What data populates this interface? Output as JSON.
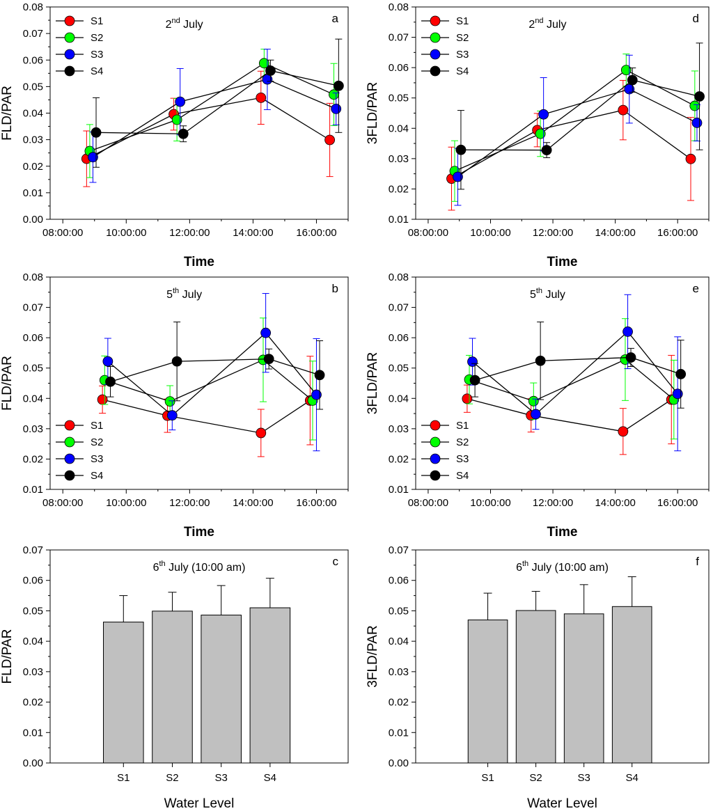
{
  "chart_data": [
    {
      "id": "a",
      "type": "line",
      "title": "2nd July",
      "title_base": "2",
      "title_sup": "nd",
      "title_rest": " July",
      "letter": "a",
      "xlabel": "Time",
      "ylabel": "FLD/PAR",
      "ylim": [
        0,
        0.08
      ],
      "yticks": [
        "0.00",
        "0.01",
        "0.02",
        "0.03",
        "0.04",
        "0.05",
        "0.06",
        "0.07",
        "0.08"
      ],
      "xlim": [
        7.6,
        17.0
      ],
      "xtick_values": [
        8,
        10,
        12,
        14,
        16
      ],
      "xticks": [
        "08:00:00",
        "10:00:00",
        "12:00:00",
        "14:00:00",
        "16:00:00"
      ],
      "legend_position": "top-left",
      "series": [
        {
          "name": "S1",
          "color": "#ff0000",
          "x": [
            8.75,
            11.5,
            14.25,
            16.42
          ],
          "y": [
            0.0228,
            0.0396,
            0.0458,
            0.0299
          ],
          "err": [
            0.0105,
            0.006,
            0.01,
            0.0138
          ]
        },
        {
          "name": "S2",
          "color": "#00ff00",
          "x": [
            8.85,
            11.6,
            14.35,
            16.55
          ],
          "y": [
            0.0257,
            0.0375,
            0.0588,
            0.047
          ],
          "err": [
            0.01,
            0.008,
            0.0053,
            0.0117
          ]
        },
        {
          "name": "S3",
          "color": "#0000ff",
          "x": [
            8.95,
            11.7,
            14.45,
            16.62
          ],
          "y": [
            0.0234,
            0.0443,
            0.0527,
            0.0416
          ],
          "err": [
            0.0095,
            0.0125,
            0.0114,
            0.006
          ]
        },
        {
          "name": "S4",
          "color": "#000000",
          "x": [
            9.05,
            11.8,
            14.55,
            16.7
          ],
          "y": [
            0.0327,
            0.0322,
            0.056,
            0.0503
          ],
          "err": [
            0.0131,
            0.003,
            0.004,
            0.0176
          ]
        }
      ]
    },
    {
      "id": "d",
      "type": "line",
      "title": "2nd July",
      "title_base": "2",
      "title_sup": "nd",
      "title_rest": " July",
      "letter": "d",
      "xlabel": "Time",
      "ylabel": "3FLD/PAR",
      "ylim": [
        0.01,
        0.08
      ],
      "yticks": [
        "0.01",
        "0.02",
        "0.03",
        "0.04",
        "0.05",
        "0.06",
        "0.07",
        "0.08"
      ],
      "xlim": [
        7.6,
        17.0
      ],
      "xtick_values": [
        8,
        10,
        12,
        14,
        16
      ],
      "xticks": [
        "08:00:00",
        "10:00:00",
        "12:00:00",
        "14:00:00",
        "16:00:00"
      ],
      "legend_position": "top-left",
      "series": [
        {
          "name": "S1",
          "color": "#ff0000",
          "x": [
            8.75,
            11.5,
            14.25,
            16.42
          ],
          "y": [
            0.0234,
            0.0394,
            0.046,
            0.0299
          ],
          "err": [
            0.0104,
            0.0055,
            0.0098,
            0.0137
          ]
        },
        {
          "name": "S2",
          "color": "#00ff00",
          "x": [
            8.85,
            11.6,
            14.35,
            16.55
          ],
          "y": [
            0.0259,
            0.0382,
            0.0592,
            0.0474
          ],
          "err": [
            0.01,
            0.0075,
            0.0053,
            0.0115
          ]
        },
        {
          "name": "S3",
          "color": "#0000ff",
          "x": [
            8.95,
            11.7,
            14.45,
            16.62
          ],
          "y": [
            0.024,
            0.0446,
            0.0529,
            0.0418
          ],
          "err": [
            0.0094,
            0.0121,
            0.0112,
            0.006
          ]
        },
        {
          "name": "S4",
          "color": "#000000",
          "x": [
            9.05,
            11.8,
            14.55,
            16.7
          ],
          "y": [
            0.0329,
            0.0328,
            0.0559,
            0.0505
          ],
          "err": [
            0.013,
            0.0025,
            0.004,
            0.0176
          ]
        }
      ]
    },
    {
      "id": "b",
      "type": "line",
      "title": "5th July",
      "title_base": "5",
      "title_sup": "th",
      "title_rest": " July",
      "letter": "b",
      "xlabel": "Time",
      "ylabel": "FLD/PAR",
      "ylim": [
        0.01,
        0.08
      ],
      "yticks": [
        "0.01",
        "0.02",
        "0.03",
        "0.04",
        "0.05",
        "0.06",
        "0.07",
        "0.08"
      ],
      "xlim": [
        7.6,
        17.0
      ],
      "xtick_values": [
        8,
        10,
        12,
        14,
        16
      ],
      "xticks": [
        "08:00:00",
        "10:00:00",
        "12:00:00",
        "14:00:00",
        "16:00:00"
      ],
      "legend_position": "bottom-left",
      "series": [
        {
          "name": "S1",
          "color": "#ff0000",
          "x": [
            9.25,
            11.3,
            14.25,
            15.8
          ],
          "y": [
            0.0396,
            0.0343,
            0.0286,
            0.0393
          ],
          "err": [
            0.0045,
            0.0055,
            0.0078,
            0.0146
          ]
        },
        {
          "name": "S2",
          "color": "#00ff00",
          "x": [
            9.32,
            11.38,
            14.32,
            15.88
          ],
          "y": [
            0.046,
            0.039,
            0.0527,
            0.0393
          ],
          "err": [
            0.008,
            0.0052,
            0.0138,
            0.013
          ]
        },
        {
          "name": "S3",
          "color": "#0000ff",
          "x": [
            9.42,
            11.45,
            14.4,
            16.0
          ],
          "y": [
            0.0522,
            0.0344,
            0.0616,
            0.0412
          ],
          "err": [
            0.0076,
            0.0048,
            0.013,
            0.0185
          ]
        },
        {
          "name": "S4",
          "color": "#000000",
          "x": [
            9.5,
            11.6,
            14.5,
            16.1
          ],
          "y": [
            0.0455,
            0.0522,
            0.053,
            0.0477
          ],
          "err": [
            0.005,
            0.013,
            0.0033,
            0.0113
          ]
        }
      ]
    },
    {
      "id": "e",
      "type": "line",
      "title": "5th July",
      "title_base": "5",
      "title_sup": "th",
      "title_rest": " July",
      "letter": "e",
      "xlabel": "Time",
      "ylabel": "3FLD/PAR",
      "ylim": [
        0.01,
        0.08
      ],
      "yticks": [
        "0.01",
        "0.02",
        "0.03",
        "0.04",
        "0.05",
        "0.06",
        "0.07",
        "0.08"
      ],
      "xlim": [
        7.6,
        17.0
      ],
      "xtick_values": [
        8,
        10,
        12,
        14,
        16
      ],
      "xticks": [
        "08:00:00",
        "10:00:00",
        "12:00:00",
        "14:00:00",
        "16:00:00"
      ],
      "legend_position": "bottom-left",
      "series": [
        {
          "name": "S1",
          "color": "#ff0000",
          "x": [
            9.25,
            11.3,
            14.25,
            15.8
          ],
          "y": [
            0.0399,
            0.0344,
            0.0291,
            0.0396
          ],
          "err": [
            0.0045,
            0.0055,
            0.0076,
            0.0146
          ]
        },
        {
          "name": "S2",
          "color": "#00ff00",
          "x": [
            9.32,
            11.38,
            14.32,
            15.88
          ],
          "y": [
            0.0462,
            0.0391,
            0.0528,
            0.0396
          ],
          "err": [
            0.008,
            0.006,
            0.0135,
            0.013
          ]
        },
        {
          "name": "S3",
          "color": "#0000ff",
          "x": [
            9.42,
            11.45,
            14.4,
            16.0
          ],
          "y": [
            0.0521,
            0.0348,
            0.062,
            0.0415
          ],
          "err": [
            0.0077,
            0.005,
            0.0122,
            0.0188
          ]
        },
        {
          "name": "S4",
          "color": "#000000",
          "x": [
            9.5,
            11.6,
            14.5,
            16.1
          ],
          "y": [
            0.046,
            0.0524,
            0.0535,
            0.048
          ],
          "err": [
            0.0055,
            0.0128,
            0.003,
            0.0112
          ]
        }
      ]
    },
    {
      "id": "c",
      "type": "bar",
      "title": "6th July (10:00 am)",
      "title_base": "6",
      "title_sup": "th",
      "title_rest": " July (10:00 am)",
      "letter": "c",
      "xlabel": "Water Level",
      "ylabel": "FLD/PAR",
      "ylim": [
        0,
        0.07
      ],
      "yticks": [
        "0.00",
        "0.01",
        "0.02",
        "0.03",
        "0.04",
        "0.05",
        "0.06",
        "0.07"
      ],
      "categories": [
        "S1",
        "S2",
        "S3",
        "S4"
      ],
      "values": [
        0.0463,
        0.0499,
        0.0486,
        0.051
      ],
      "err": [
        0.0087,
        0.0062,
        0.0097,
        0.0097
      ],
      "bar_color": "#c0c0c0"
    },
    {
      "id": "f",
      "type": "bar",
      "title": "6th July (10:00 am)",
      "title_base": "6",
      "title_sup": "th",
      "title_rest": " July (10:00 am)",
      "letter": "f",
      "xlabel": "Water Level",
      "ylabel": "3FLD/PAR",
      "ylim": [
        0,
        0.07
      ],
      "yticks": [
        "0.00",
        "0.01",
        "0.02",
        "0.03",
        "0.04",
        "0.05",
        "0.06",
        "0.07"
      ],
      "categories": [
        "S1",
        "S2",
        "S3",
        "S4"
      ],
      "values": [
        0.047,
        0.0501,
        0.049,
        0.0514
      ],
      "err": [
        0.0088,
        0.0063,
        0.0096,
        0.0098
      ],
      "bar_color": "#c0c0c0"
    }
  ]
}
